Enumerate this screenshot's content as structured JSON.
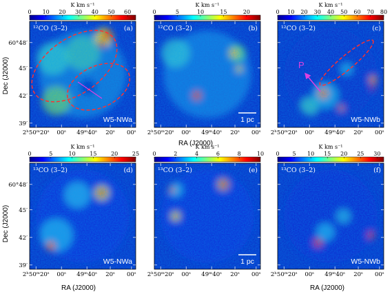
{
  "figure": {
    "colorbar_unit": "K km s⁻¹",
    "ylabel": "Dec (J2000)",
    "xlabel": "RA (J2000)",
    "ra_ticks": [
      "2ʰ50ᵐ20ˢ",
      "00ˢ",
      "49ᵐ40ˢ",
      "20ˢ",
      "00ˢ"
    ],
    "dec_ticks": [
      "60°48′",
      "45′",
      "42′",
      "39′"
    ],
    "scalebar_label": "1 pc",
    "arrow_label": "P"
  },
  "panels": [
    {
      "id": "a",
      "letter": "(a)",
      "species": "¹²CO (3–2)",
      "region": "W5-NWa",
      "cbar_ticks": [
        "0",
        "10",
        "20",
        "30",
        "40",
        "50",
        "60"
      ],
      "cbar_max": 65
    },
    {
      "id": "b",
      "letter": "(b)",
      "species": "¹²CO (3–2)",
      "region": "",
      "cbar_ticks": [
        "0",
        "5",
        "10",
        "15",
        "20"
      ],
      "cbar_max": 23
    },
    {
      "id": "c",
      "letter": "(c)",
      "species": "¹²CO (3–2)",
      "region": "W5-NWb",
      "cbar_ticks": [
        "0",
        "10",
        "20",
        "30",
        "40",
        "50",
        "60",
        "70",
        "80"
      ],
      "cbar_max": 80
    },
    {
      "id": "d",
      "letter": "(d)",
      "species": "¹³CO (3–2)",
      "region": "W5-NWa",
      "cbar_ticks": [
        "0",
        "5",
        "10",
        "15",
        "20",
        "25"
      ],
      "cbar_max": 25
    },
    {
      "id": "e",
      "letter": "(e)",
      "species": "¹³CO (3–2)",
      "region": "",
      "cbar_ticks": [
        "0",
        "2",
        "4",
        "6",
        "8",
        "10"
      ],
      "cbar_max": 10
    },
    {
      "id": "f",
      "letter": "(f)",
      "species": "¹³CO (3–2)",
      "region": "W5-NWb",
      "cbar_ticks": [
        "0",
        "5",
        "10",
        "15",
        "20",
        "25",
        "30"
      ],
      "cbar_max": 32
    }
  ]
}
